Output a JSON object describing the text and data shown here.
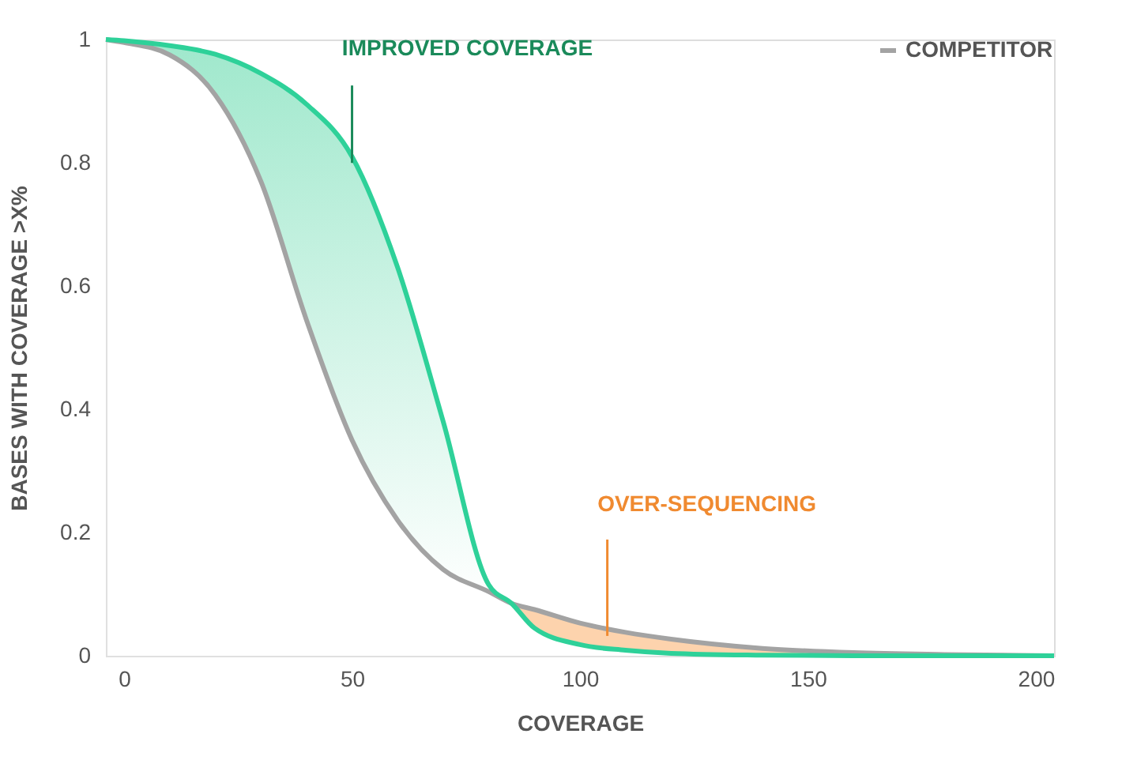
{
  "chart_data": {
    "type": "line",
    "xlabel": "COVERAGE",
    "ylabel": "BASES WITH COVERAGE >X%",
    "x": [
      -4,
      0,
      10,
      20,
      30,
      40,
      50,
      60,
      70,
      80,
      85,
      90,
      100,
      110,
      120,
      140,
      160,
      180,
      204
    ],
    "series": [
      {
        "name": "COMPETITOR",
        "color": "#a3a3a3",
        "values": [
          1,
          0.995,
          0.975,
          0.91,
          0.77,
          0.545,
          0.35,
          0.22,
          0.14,
          0.104,
          0.085,
          0.075,
          0.053,
          0.038,
          0.027,
          0.012,
          0.005,
          0.002,
          0
        ],
        "lower": [
          null,
          null,
          null,
          null,
          null,
          null,
          null,
          null,
          null,
          null,
          0.085,
          0.045,
          0.018,
          0.009,
          0.004,
          0.001,
          0,
          0,
          0
        ],
        "upper": [
          null,
          null,
          null,
          null,
          null,
          null,
          null,
          null,
          null,
          null,
          0.085,
          0.075,
          0.053,
          0.038,
          0.027,
          0.012,
          0.005,
          0.002,
          0
        ]
      },
      {
        "color": "#2ed199",
        "values": [
          1,
          0.998,
          0.99,
          0.976,
          0.945,
          0.895,
          0.81,
          0.63,
          0.38,
          0.115,
          0.085,
          0.045,
          0.018,
          0.009,
          0.004,
          0.001,
          0,
          0,
          0
        ],
        "lower": [
          1,
          0.995,
          0.975,
          0.91,
          0.77,
          0.545,
          0.35,
          0.22,
          0.14,
          0.104,
          0.085,
          null,
          null,
          null,
          null,
          null,
          null,
          null,
          null
        ],
        "upper": [
          1,
          0.998,
          0.99,
          0.976,
          0.945,
          0.895,
          0.81,
          0.63,
          0.38,
          0.115,
          0.085,
          null,
          null,
          null,
          null,
          null,
          null,
          null,
          null
        ]
      }
    ],
    "xlim": [
      -4,
      204
    ],
    "xticks": [
      0,
      50,
      100,
      150,
      200
    ],
    "ylim": [
      0,
      1
    ],
    "yticks": [
      0,
      0.2,
      0.4,
      0.6,
      0.8,
      1
    ],
    "grid": false,
    "legend": "top right",
    "line_style": "solid",
    "marker": "none",
    "annotations": [
      {
        "text": "IMPROVED COVERAGE",
        "x": 50,
        "y": 0.81
      },
      {
        "text": "OVER-SEQUENCING",
        "x": 106,
        "y": 0.045
      }
    ]
  }
}
